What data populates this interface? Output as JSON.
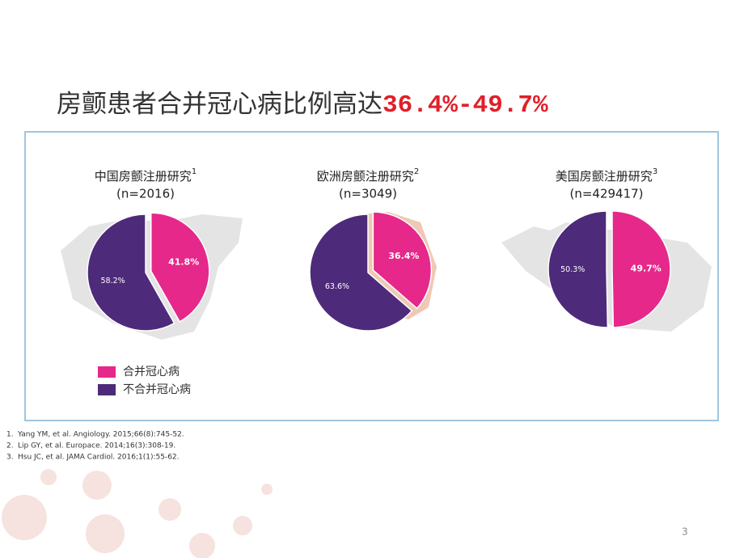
{
  "title": "房颤患者合并冠心病比例高达",
  "title_highlight": "36.4%-49.7%",
  "legend": {
    "labels": [
      "合并冠心病",
      "不合并冠心病"
    ],
    "colors": [
      "#e6288a",
      "#4e2a7a"
    ]
  },
  "chart_data": [
    {
      "type": "pie",
      "title": "中国房颤注册研究",
      "title_note": "1",
      "subtitle": "(n=2016)",
      "values": [
        41.8,
        58.2
      ],
      "value_labels": [
        "41.8%",
        "58.2%"
      ]
    },
    {
      "type": "pie",
      "title": "欧洲房颤注册研究",
      "title_note": "2",
      "subtitle": "(n=3049)",
      "values": [
        36.4,
        63.6
      ],
      "value_labels": [
        "36.4%",
        "63.6%"
      ]
    },
    {
      "type": "pie",
      "title": "美国房颤注册研究",
      "title_note": "3",
      "subtitle": "(n=429417)",
      "values": [
        49.7,
        50.3
      ],
      "value_labels": [
        "49.7%",
        "50.3%"
      ]
    }
  ],
  "references": [
    {
      "number": "1.",
      "text": "Yang YM, et al. Angiology. 2015;66(8):745-52."
    },
    {
      "number": "2.",
      "text": "Lip GY, et al. Europace. 2014;16(3):308-19."
    },
    {
      "number": "3.",
      "text": "Hsu JC, et al. JAMA Cardiol. 2016;1(1):55-62."
    }
  ],
  "page_number": "3"
}
